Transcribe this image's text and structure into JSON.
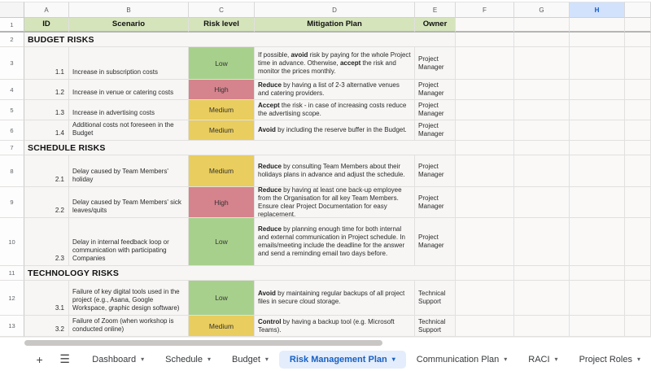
{
  "columns": [
    "A",
    "B",
    "C",
    "D",
    "E",
    "F",
    "G",
    "H"
  ],
  "row_numbers": [
    "1",
    "2",
    "3",
    "4",
    "5",
    "6",
    "7",
    "8",
    "9",
    "10",
    "11",
    "12",
    "13"
  ],
  "header": {
    "id": "ID",
    "scenario": "Scenario",
    "risk_level": "Risk level",
    "mitigation": "Mitigation Plan",
    "owner": "Owner"
  },
  "sections": [
    {
      "row": "2",
      "title": "BUDGET RISKS"
    },
    {
      "row": "7",
      "title": "SCHEDULE RISKS"
    },
    {
      "row": "11",
      "title": "TECHNOLOGY RISKS"
    }
  ],
  "risks": [
    {
      "row": "3",
      "id": "1.1",
      "scenario": "Increase in subscription costs",
      "level": "Low",
      "level_key": "low",
      "m": [
        {
          "t": "If possible, "
        },
        {
          "b": "avoid"
        },
        {
          "t": " risk by paying for the whole Project time in advance. Otherwise, "
        },
        {
          "b": "accept"
        },
        {
          "t": " the risk and monitor the prices monthly."
        }
      ],
      "owner": "Project Manager"
    },
    {
      "row": "4",
      "id": "1.2",
      "scenario": "Increase in venue or catering costs",
      "level": "High",
      "level_key": "high",
      "m": [
        {
          "b": "Reduce"
        },
        {
          "t": " by having a list of 2-3 alternative venues and catering providers."
        }
      ],
      "owner": "Project Manager"
    },
    {
      "row": "5",
      "id": "1.3",
      "scenario": "Increase in advertising costs",
      "level": "Medium",
      "level_key": "medium",
      "m": [
        {
          "b": "Accept"
        },
        {
          "t": " the risk - in case of increasing costs reduce the advertising scope."
        }
      ],
      "owner": "Project Manager"
    },
    {
      "row": "6",
      "id": "1.4",
      "scenario": "Additional costs not foreseen in the Budget",
      "level": "Medium",
      "level_key": "medium",
      "m": [
        {
          "b": "Avoid"
        },
        {
          "t": " by including the reserve buffer in the Budget."
        }
      ],
      "owner": "Project Manager"
    },
    {
      "row": "8",
      "id": "2.1",
      "scenario": "Delay caused by Team Members' holiday",
      "level": "Medium",
      "level_key": "medium",
      "m": [
        {
          "b": "Reduce"
        },
        {
          "t": " by consulting Team Members about their holidays plans in advance and adjust the schedule."
        }
      ],
      "owner": "Project Manager"
    },
    {
      "row": "9",
      "id": "2.2",
      "scenario": "Delay caused by Team Members' sick leaves/quits",
      "level": "High",
      "level_key": "high",
      "m": [
        {
          "b": "Reduce"
        },
        {
          "t": " by having at least one back-up employee from the Organisation for all key Team Members. Ensure clear Project Documentation for easy replacement."
        }
      ],
      "owner": "Project Manager"
    },
    {
      "row": "10",
      "id": "2.3",
      "scenario": "Delay in internal feedback loop or communication with participating Companies",
      "level": "Low",
      "level_key": "low",
      "m": [
        {
          "b": "Reduce"
        },
        {
          "t": " by planning enough time for both internal and external communication in Project schedule. In emails/meeting include the deadline for the answer and send a reminding email two days before."
        }
      ],
      "owner": "Project Manager"
    },
    {
      "row": "12",
      "id": "3.1",
      "scenario": "Failure of key digital tools used in the project (e.g., Asana, Google Workspace, graphic design software)",
      "level": "Low",
      "level_key": "low",
      "m": [
        {
          "b": "Avoid"
        },
        {
          "t": " by maintaining regular backups of all project files in secure cloud storage."
        }
      ],
      "owner": "Technical Support"
    },
    {
      "row": "13",
      "id": "3.2",
      "scenario": "Failure of Zoom (when workshop is conducted online)",
      "level": "Medium",
      "level_key": "medium",
      "m": [
        {
          "b": "Control"
        },
        {
          "t": " by having a backup tool (e.g. Microsoft Teams)."
        }
      ],
      "owner": "Technical Support"
    }
  ],
  "colors": {
    "low": "#a8d08d",
    "medium": "#e9cd5e",
    "high": "#d5838d",
    "header_green": "#d5e4bb",
    "selected_column_header": "#d2e2fc",
    "active_tab_bg": "#e4edfb",
    "active_tab_text": "#1760c4"
  },
  "selected_column": "H",
  "tabbar": {
    "add_icon": "+",
    "menu_icon": "☰",
    "arrow_icon": "▾",
    "tabs": [
      {
        "label": "Dashboard"
      },
      {
        "label": "Schedule"
      },
      {
        "label": "Budget"
      },
      {
        "label": "Risk Management Plan"
      },
      {
        "label": "Communication Plan"
      },
      {
        "label": "RACI"
      },
      {
        "label": "Project Roles"
      }
    ]
  }
}
